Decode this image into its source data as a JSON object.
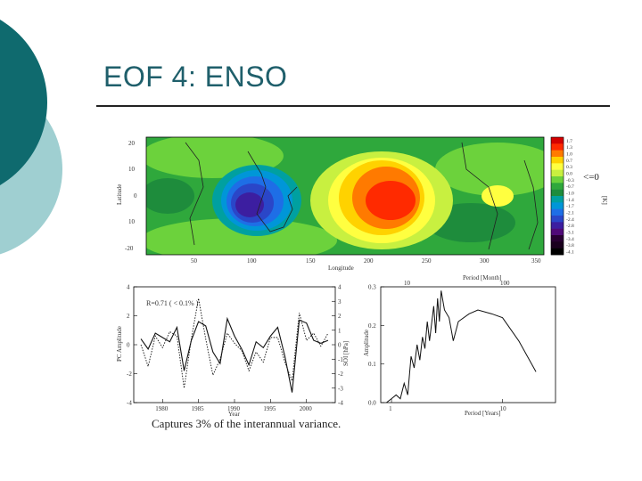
{
  "slide": {
    "title": "EOF 4: ENSO",
    "caption": "Captures 3% of the interannual variance.",
    "zero_note": "<=0"
  },
  "map": {
    "ylabel": "Latitude",
    "xlabel": "Longitude",
    "y_ticks": [
      "20",
      "10",
      "0",
      "10",
      "-20"
    ],
    "x_ticks": [
      "50",
      "100",
      "150",
      "200",
      "250",
      "300",
      "350"
    ],
    "colorbar_label": "[K]",
    "colorbar_ticks": [
      "1.7",
      "1.3",
      "1.0",
      "0.7",
      "0.3",
      "0.0",
      "-0.3",
      "-0.7",
      "-1.0",
      "-1.4",
      "-1.7",
      "-2.1",
      "-2.4",
      "-2.8",
      "-3.1",
      "-3.4",
      "-3.8",
      "-4.1"
    ],
    "colors": [
      "#d40000",
      "#ff2a00",
      "#ff7a00",
      "#ffd200",
      "#ffff40",
      "#c8f040",
      "#6cd23c",
      "#2fa83c",
      "#1e8c3c",
      "#00a0a0",
      "#0096d8",
      "#1e6ee6",
      "#2a46c8",
      "#3c1ea0",
      "#500a78",
      "#280032",
      "#1a001e",
      "#000000"
    ]
  },
  "pc_chart": {
    "annotation": "R=0.71 ( < 0.1% )",
    "ylabel_left": "PC Amplitude",
    "ylabel_right": "SOI [hPa]",
    "xlabel": "Year",
    "x_ticks": [
      "1980",
      "1985",
      "1990",
      "1995",
      "2000"
    ],
    "y_ticks_left": [
      "4",
      "2",
      "0",
      "-2",
      "-4"
    ],
    "y_ticks_right": [
      "4",
      "3",
      "2",
      "1",
      "0",
      "-1",
      "-2",
      "-3",
      "-4"
    ]
  },
  "spectrum_chart": {
    "top_label": "Period [Month]",
    "top_ticks": [
      "10",
      "100"
    ],
    "ylabel": "Amplitude",
    "xlabel": "Period [Years]",
    "y_ticks": [
      "0.3",
      "0.2",
      "0.1",
      "0.0"
    ],
    "x_ticks": [
      "1",
      "10"
    ]
  },
  "chart_data": [
    {
      "type": "line",
      "title": "",
      "xlabel": "Year",
      "ylabel": "PC Amplitude",
      "xlim": [
        1976,
        2004
      ],
      "ylim": [
        -4,
        4
      ],
      "series": [
        {
          "name": "",
          "x": [
            1977,
            1978,
            1979,
            1980,
            1981,
            1982,
            1983,
            1984,
            1985,
            1986,
            1987,
            1988,
            1989,
            1990,
            1991,
            1992,
            1993,
            1994,
            1995,
            1996,
            1997,
            1998,
            1999,
            2000,
            2001,
            2002,
            2003
          ],
          "values": [
            0.4,
            -0.3,
            0.8,
            0.5,
            0.2,
            1.2,
            -1.8,
            0.3,
            1.6,
            1.3,
            -0.5,
            -1.3,
            1.8,
            0.6,
            -0.3,
            -1.4,
            0.2,
            -0.2,
            0.6,
            1.2,
            -0.8,
            -3.3,
            1.7,
            1.5,
            0.3,
            0.1,
            0.3
          ]
        },
        {
          "name": "",
          "x": [
            1977,
            1978,
            1979,
            1980,
            1981,
            1982,
            1983,
            1984,
            1985,
            1986,
            1987,
            1988,
            1989,
            1990,
            1991,
            1992,
            1993,
            1994,
            1995,
            1996,
            1997,
            1998,
            1999,
            2000,
            2001,
            2002,
            2003
          ],
          "values": [
            0.0,
            -1.5,
            0.6,
            -0.2,
            0.9,
            0.6,
            -3.0,
            0.4,
            3.2,
            0.4,
            -2.1,
            -1.0,
            0.8,
            0.1,
            -0.4,
            -1.8,
            -0.5,
            -1.2,
            0.5,
            0.5,
            -1.2,
            -2.5,
            2.2,
            0.3,
            0.8,
            -0.1,
            0.8
          ]
        }
      ]
    },
    {
      "type": "line",
      "title": "",
      "xlabel": "Period [Years]",
      "ylabel": "Amplitude",
      "ylim": [
        0.0,
        0.3
      ],
      "x_scale": "log",
      "series": [
        {
          "name": "",
          "x": [
            0.9,
            1.0,
            1.1,
            1.2,
            1.3,
            1.4,
            1.5,
            1.6,
            1.7,
            1.8,
            1.9,
            2.0,
            2.1,
            2.2,
            2.4,
            2.5,
            2.6,
            2.7,
            2.8,
            3.0,
            3.3,
            3.6,
            4.0,
            5.0,
            6.0,
            8.0,
            10.0,
            14.0,
            20.0
          ],
          "values": [
            0.0,
            0.01,
            0.02,
            0.01,
            0.05,
            0.02,
            0.12,
            0.09,
            0.15,
            0.11,
            0.17,
            0.14,
            0.21,
            0.16,
            0.25,
            0.18,
            0.27,
            0.21,
            0.29,
            0.24,
            0.22,
            0.16,
            0.21,
            0.23,
            0.24,
            0.23,
            0.22,
            0.16,
            0.08
          ]
        }
      ]
    }
  ]
}
